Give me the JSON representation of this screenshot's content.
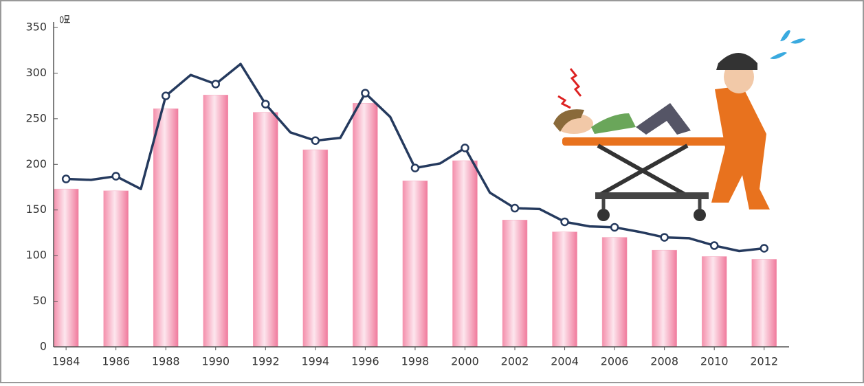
{
  "chart_data": {
    "type": "combo",
    "y_unit_label": "명",
    "xlim": [
      1983.5,
      2013
    ],
    "xticks": [
      1984,
      1986,
      1988,
      1990,
      1992,
      1994,
      1996,
      1998,
      2000,
      2002,
      2004,
      2006,
      2008,
      2010,
      2012
    ],
    "ylim": [
      0,
      350
    ],
    "yticks": [
      0,
      50,
      100,
      150,
      200,
      250,
      300,
      350
    ],
    "series": [
      {
        "type": "bar",
        "color": "#f4a7bd",
        "x": [
          1984,
          1986,
          1988,
          1990,
          1992,
          1994,
          1996,
          1998,
          2000,
          2002,
          2004,
          2006,
          2008,
          2010,
          2012
        ],
        "values": [
          173,
          171,
          261,
          276,
          257,
          216,
          267,
          182,
          204,
          139,
          126,
          120,
          106,
          99,
          96
        ]
      },
      {
        "type": "line",
        "color": "#253a5e",
        "x": [
          1984,
          1985,
          1986,
          1987,
          1988,
          1989,
          1990,
          1991,
          1992,
          1993,
          1994,
          1995,
          1996,
          1997,
          1998,
          1999,
          2000,
          2001,
          2002,
          2003,
          2004,
          2005,
          2006,
          2007,
          2008,
          2009,
          2010,
          2011,
          2012
        ],
        "values": [
          184,
          183,
          187,
          173,
          275,
          298,
          288,
          310,
          266,
          235,
          226,
          229,
          278,
          252,
          196,
          201,
          218,
          169,
          152,
          151,
          137,
          132,
          131,
          126,
          120,
          119,
          111,
          105,
          108
        ]
      }
    ]
  }
}
